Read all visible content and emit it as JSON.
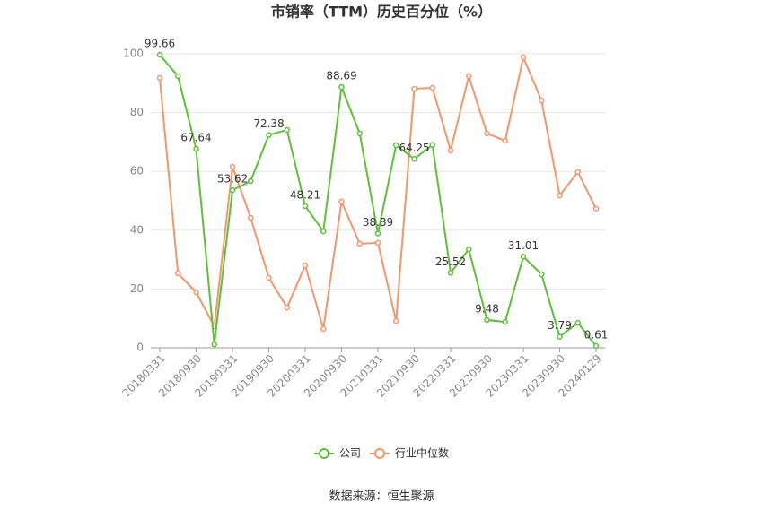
{
  "chart_data": {
    "type": "line",
    "title": "市销率（TTM）历史百分位（%）",
    "source": "数据来源：恒生聚源",
    "categories": [
      "20180331",
      null,
      "20180930",
      null,
      "20190331",
      null,
      "20190930",
      null,
      "20200331",
      null,
      "20200930",
      null,
      "20210331",
      null,
      "20210930",
      null,
      "20220331",
      null,
      "20220930",
      null,
      "20230331",
      null,
      "20230930",
      null,
      "20240129"
    ],
    "series": [
      {
        "name": "公司",
        "color": "#5ac234",
        "values": [
          99.66,
          92.4,
          67.64,
          1.2,
          53.62,
          56.7,
          72.38,
          74.1,
          48.21,
          39.6,
          88.69,
          72.9,
          38.89,
          68.9,
          64.25,
          69,
          25.52,
          33.5,
          9.48,
          8.8,
          31.01,
          25,
          3.79,
          8.5,
          0.61
        ],
        "value_labels": [
          "99.66",
          null,
          "67.64",
          null,
          "53.62",
          null,
          "72.38",
          null,
          "48.21",
          null,
          "88.69",
          null,
          "38.89",
          null,
          "64.25",
          null,
          "25.52",
          null,
          "9.48",
          null,
          "31.01",
          null,
          "3.79",
          null,
          "0.61"
        ]
      },
      {
        "name": "行业中位数",
        "color": "#f4956b",
        "values": [
          91.8,
          25.3,
          18.9,
          7.3,
          61.6,
          44.2,
          23.8,
          13.7,
          28,
          6.4,
          49.7,
          35.4,
          35.7,
          9.1,
          88.1,
          88.4,
          67.1,
          92.4,
          72.9,
          70.4,
          98.8,
          84.1,
          51.8,
          59.8,
          47.3
        ]
      }
    ],
    "ylim": [
      0,
      100
    ],
    "yticks": [
      0,
      20,
      40,
      60,
      80,
      100
    ],
    "grid": true
  }
}
